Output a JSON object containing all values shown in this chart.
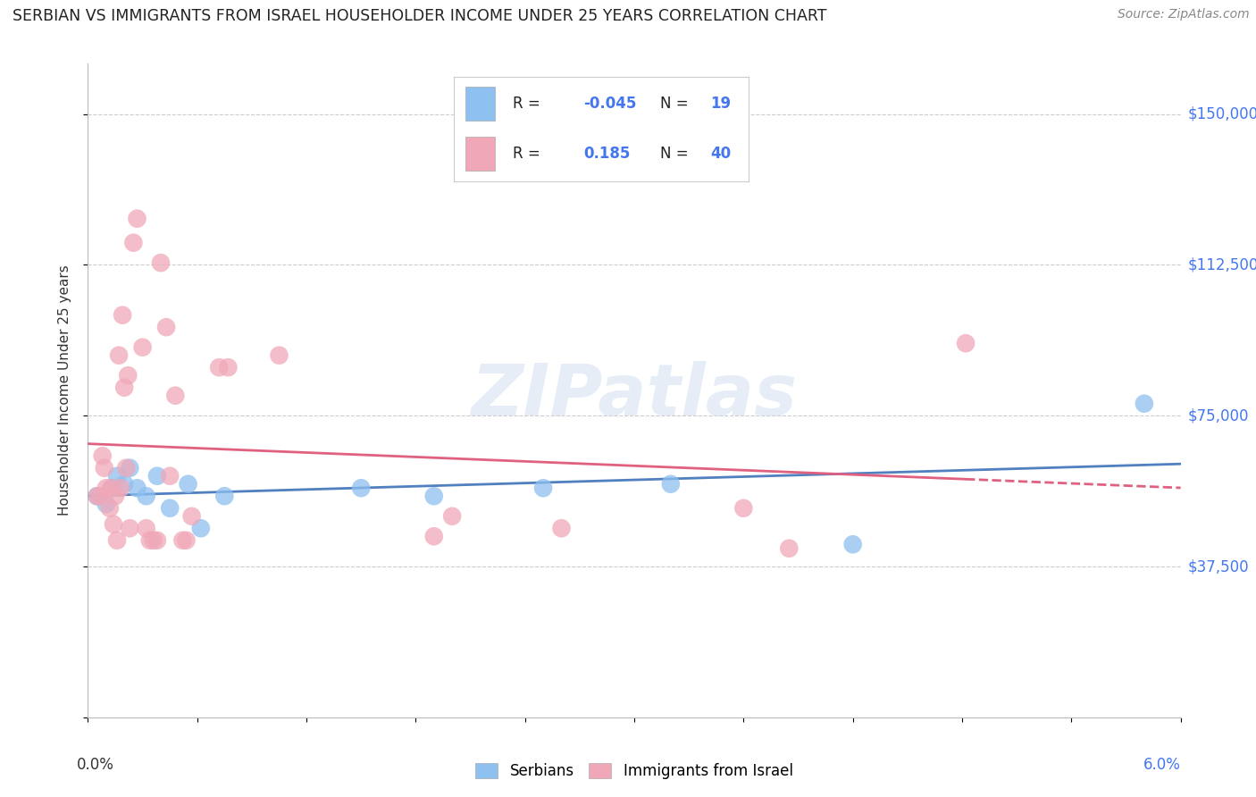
{
  "title": "SERBIAN VS IMMIGRANTS FROM ISRAEL HOUSEHOLDER INCOME UNDER 25 YEARS CORRELATION CHART",
  "source": "Source: ZipAtlas.com",
  "ylabel": "Householder Income Under 25 years",
  "xmin": 0.0,
  "xmax": 6.0,
  "ymin": 0,
  "ymax": 162500,
  "yticks": [
    0,
    37500,
    75000,
    112500,
    150000
  ],
  "ytick_labels": [
    "",
    "$37,500",
    "$75,000",
    "$112,500",
    "$150,000"
  ],
  "serbian_color": "#8ec0f0",
  "israel_color": "#f0a8b8",
  "serbian_line_color": "#5080c0",
  "israel_line_color": "#e06080",
  "serbian_R": -0.045,
  "israel_R": 0.185,
  "serbian_N": 19,
  "israel_N": 40,
  "serbian_points": [
    [
      0.05,
      55000
    ],
    [
      0.1,
      53000
    ],
    [
      0.13,
      57000
    ],
    [
      0.16,
      60000
    ],
    [
      0.2,
      58000
    ],
    [
      0.23,
      62000
    ],
    [
      0.27,
      57000
    ],
    [
      0.32,
      55000
    ],
    [
      0.38,
      60000
    ],
    [
      0.45,
      52000
    ],
    [
      0.55,
      58000
    ],
    [
      0.62,
      47000
    ],
    [
      0.75,
      55000
    ],
    [
      1.5,
      57000
    ],
    [
      1.9,
      55000
    ],
    [
      2.5,
      57000
    ],
    [
      3.2,
      58000
    ],
    [
      4.2,
      43000
    ],
    [
      5.8,
      78000
    ]
  ],
  "israel_points": [
    [
      0.05,
      55000
    ],
    [
      0.07,
      55000
    ],
    [
      0.08,
      65000
    ],
    [
      0.09,
      62000
    ],
    [
      0.1,
      57000
    ],
    [
      0.12,
      52000
    ],
    [
      0.13,
      57000
    ],
    [
      0.14,
      48000
    ],
    [
      0.15,
      55000
    ],
    [
      0.16,
      44000
    ],
    [
      0.17,
      90000
    ],
    [
      0.18,
      57000
    ],
    [
      0.19,
      100000
    ],
    [
      0.2,
      82000
    ],
    [
      0.21,
      62000
    ],
    [
      0.22,
      85000
    ],
    [
      0.23,
      47000
    ],
    [
      0.25,
      118000
    ],
    [
      0.27,
      124000
    ],
    [
      0.3,
      92000
    ],
    [
      0.32,
      47000
    ],
    [
      0.34,
      44000
    ],
    [
      0.36,
      44000
    ],
    [
      0.38,
      44000
    ],
    [
      0.4,
      113000
    ],
    [
      0.43,
      97000
    ],
    [
      0.45,
      60000
    ],
    [
      0.48,
      80000
    ],
    [
      0.52,
      44000
    ],
    [
      0.54,
      44000
    ],
    [
      0.57,
      50000
    ],
    [
      0.72,
      87000
    ],
    [
      0.77,
      87000
    ],
    [
      1.05,
      90000
    ],
    [
      1.9,
      45000
    ],
    [
      2.0,
      50000
    ],
    [
      2.6,
      47000
    ],
    [
      3.6,
      52000
    ],
    [
      3.85,
      42000
    ],
    [
      4.82,
      93000
    ]
  ]
}
